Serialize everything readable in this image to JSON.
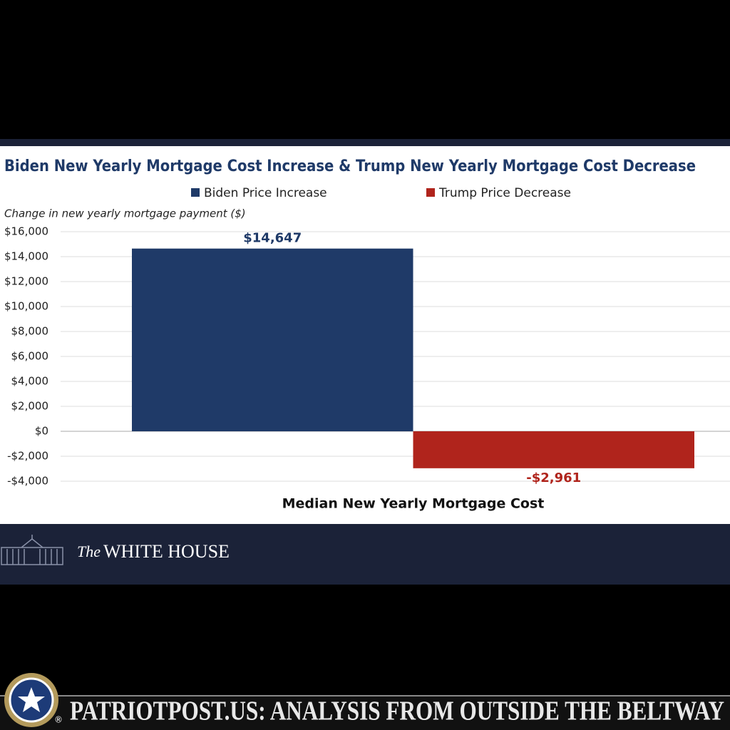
{
  "chart_data": {
    "type": "bar",
    "title": "Biden New Yearly Mortgage Cost Increase & Trump New Yearly Mortgage Cost Decrease",
    "y_label": "Change in new yearly mortgage payment ($)",
    "categories": [
      "Median New Yearly Mortgage Cost"
    ],
    "series": [
      {
        "name": "Biden Price Increase",
        "color": "#1f3a68",
        "values": [
          14647
        ],
        "value_labels": [
          "$14,647"
        ]
      },
      {
        "name": "Trump Price Decrease",
        "color": "#b0241c",
        "values": [
          -2961
        ],
        "value_labels": [
          "-$2,961"
        ]
      }
    ],
    "ylim": [
      -4000,
      16000
    ],
    "yticks": [
      {
        "value": -4000,
        "label": "-$4,000"
      },
      {
        "value": -2000,
        "label": "-$2,000"
      },
      {
        "value": 0,
        "label": "$0"
      },
      {
        "value": 2000,
        "label": "$2,000"
      },
      {
        "value": 4000,
        "label": "$4,000"
      },
      {
        "value": 6000,
        "label": "$6,000"
      },
      {
        "value": 8000,
        "label": "$8,000"
      },
      {
        "value": 10000,
        "label": "$10,000"
      },
      {
        "value": 12000,
        "label": "$12,000"
      },
      {
        "value": 14000,
        "label": "$14,000"
      },
      {
        "value": 16000,
        "label": "$16,000"
      }
    ],
    "grid": true,
    "legend": "top"
  },
  "source": {
    "the": "The",
    "name": "WHITE HOUSE"
  },
  "banner": {
    "text": "PATRIOTPOST.US: ANALYSIS FROM OUTSIDE THE BELTWAY",
    "mark": "®"
  }
}
